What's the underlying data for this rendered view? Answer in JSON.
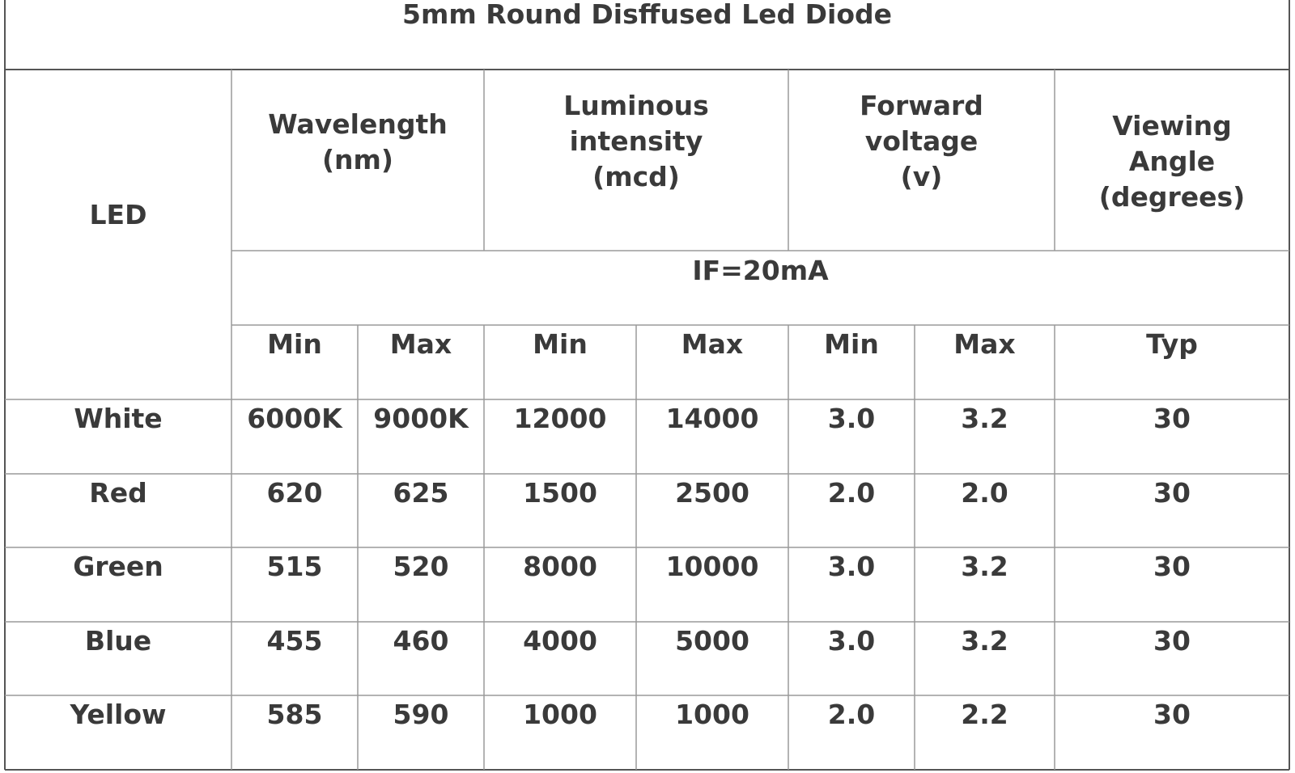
{
  "title": "5mm Round Disffused Led Diode",
  "table": {
    "led_header": "LED",
    "groups": [
      [
        "Wavelength",
        "(nm)"
      ],
      [
        "Luminous",
        "intensity",
        "(mcd)"
      ],
      [
        "Forward",
        "voltage",
        "(v)"
      ],
      [
        "Viewing",
        "Angle",
        "(degrees)"
      ]
    ],
    "condition": "IF=20mA",
    "subheaders": [
      "Min",
      "Max",
      "Min",
      "Max",
      "Min",
      "Max",
      "Typ"
    ],
    "rows": [
      [
        "White",
        "6000K",
        "9000K",
        "12000",
        "14000",
        "3.0",
        "3.2",
        "30"
      ],
      [
        "Red",
        "620",
        "625",
        "1500",
        "2500",
        "2.0",
        "2.0",
        "30"
      ],
      [
        "Green",
        "515",
        "520",
        "8000",
        "10000",
        "3.0",
        "3.2",
        "30"
      ],
      [
        "Blue",
        "455",
        "460",
        "4000",
        "5000",
        "3.0",
        "3.2",
        "30"
      ],
      [
        "Yellow",
        "585",
        "590",
        "1000",
        "1000",
        "2.0",
        "2.2",
        "30"
      ]
    ]
  }
}
